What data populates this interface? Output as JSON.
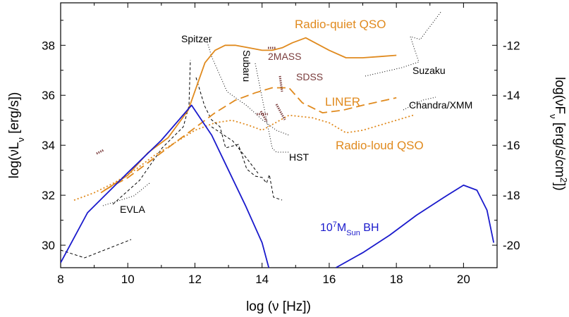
{
  "chart_data": {
    "type": "line",
    "title": "",
    "xlabel": "log (ν [Hz])",
    "ylabel_left": "log(νL_ν [erg/s])",
    "ylabel_right": "log(νF_ν [erg/s/cm^2])",
    "xlim": [
      8,
      21
    ],
    "ylim_left": [
      29.1,
      39.7
    ],
    "ylim_right": [
      -20.9,
      -10.3
    ],
    "x_ticks": [
      "8",
      "10",
      "12",
      "14",
      "16",
      "18",
      "20"
    ],
    "y_ticks_left": [
      "30",
      "32",
      "34",
      "36",
      "38"
    ],
    "y_ticks_right": [
      "-12",
      "-14",
      "-16",
      "-18",
      "-20"
    ],
    "grid": false,
    "colors": {
      "qso": "#e08a1e",
      "bh": "#1a1acc",
      "instrument": "#000000",
      "points": "#7a3c3c"
    },
    "series": [
      {
        "name": "Radio-quiet QSO",
        "style": "solid",
        "x": [
          9.2,
          10.0,
          10.6,
          11.2,
          11.8,
          12.3,
          12.6,
          12.9,
          13.2,
          13.6,
          14.0,
          14.3,
          14.6,
          14.9,
          15.3,
          16.0,
          16.5,
          17.0,
          17.5,
          18.0
        ],
        "y": [
          32.1,
          32.8,
          33.7,
          34.3,
          35.4,
          37.3,
          37.8,
          38.0,
          38.0,
          37.9,
          37.8,
          37.8,
          37.9,
          38.1,
          38.3,
          37.8,
          37.5,
          37.5,
          37.55,
          37.6
        ]
      },
      {
        "name": "LINER",
        "style": "dashed",
        "x": [
          9.3,
          10.0,
          10.6,
          11.3,
          12.0,
          12.6,
          13.2,
          13.8,
          14.3,
          14.8,
          15.2,
          15.8,
          16.4,
          17.0,
          18.0
        ],
        "y": [
          32.2,
          32.7,
          33.3,
          34.0,
          34.7,
          35.3,
          35.8,
          36.1,
          36.3,
          36.3,
          35.7,
          35.3,
          35.4,
          35.6,
          35.9
        ]
      },
      {
        "name": "Radio-loud QSO",
        "style": "dotted",
        "x": [
          8.4,
          9.0,
          9.6,
          10.2,
          10.8,
          11.4,
          12.0,
          12.6,
          13.1,
          13.6,
          14.0,
          14.4,
          14.8,
          15.5,
          16.0,
          16.5,
          17.0,
          17.5,
          18.0,
          18.5
        ],
        "y": [
          31.8,
          32.1,
          32.5,
          33.0,
          33.6,
          34.1,
          34.6,
          34.9,
          35.0,
          34.8,
          34.6,
          34.9,
          35.2,
          35.1,
          34.9,
          34.5,
          34.6,
          34.8,
          35.0,
          35.2
        ]
      },
      {
        "name": "10^7 M_Sun BH",
        "style": "solid",
        "x": [
          8.0,
          8.8,
          10.0,
          11.0,
          11.9,
          12.5,
          13.0,
          13.5,
          14.0,
          14.2
        ],
        "y": [
          29.3,
          31.3,
          32.9,
          34.2,
          35.6,
          34.4,
          33.0,
          31.6,
          30.1,
          29.1
        ]
      },
      {
        "style": "solid",
        "x": [
          16.2,
          17.0,
          17.8,
          18.6,
          19.4,
          20.0,
          20.4,
          20.7,
          20.9
        ],
        "y": [
          29.1,
          29.7,
          30.4,
          31.2,
          31.9,
          32.4,
          32.2,
          31.4,
          30.1
        ]
      }
    ],
    "annotations": [
      "Radio-quiet QSO",
      "LINER",
      "Radio-loud QSO",
      "10^7 M_Sun BH",
      "Spitzer",
      "Subaru",
      "2MASS",
      "SDSS",
      "Suzaku",
      "Chandra/XMM",
      "HST",
      "EVLA"
    ]
  }
}
